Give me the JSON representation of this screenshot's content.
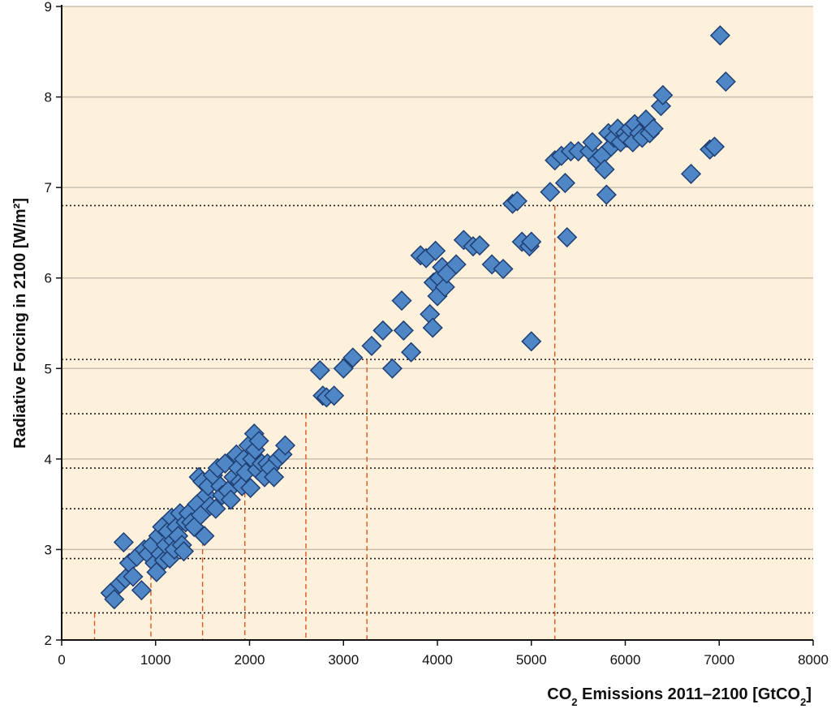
{
  "chart_data": {
    "type": "scatter",
    "title": "",
    "xlabel": {
      "prefix": "CO",
      "sub": "2",
      "main": " Emissions 2011–2100 [GtCO",
      "sub2": "2",
      "suffix": "]"
    },
    "ylabel": "Radiative Forcing in 2100 [W/m²]",
    "xlim": [
      0,
      8000
    ],
    "ylim": [
      2,
      9
    ],
    "xticks": [
      "0",
      "1000",
      "2000",
      "3000",
      "4000",
      "5000",
      "6000",
      "7000",
      "8000"
    ],
    "yticks": [
      "2",
      "3",
      "4",
      "5",
      "6",
      "7",
      "8",
      "9"
    ],
    "grid": true,
    "colors": {
      "background": "#fdf1dc",
      "grid": "#c8bfae",
      "marker_fill": "#4f86c6",
      "marker_stroke": "#1f3f73",
      "dotted_line": "#1a1a1a",
      "dashed_line": "#e0561e"
    },
    "reference_levels": [
      2.3,
      2.9,
      3.45,
      3.9,
      4.5,
      5.1,
      6.8
    ],
    "reference_lines": [
      {
        "x": 350,
        "y": 2.3
      },
      {
        "x": 950,
        "y": 2.9
      },
      {
        "x": 1500,
        "y": 3.45
      },
      {
        "x": 1950,
        "y": 3.9
      },
      {
        "x": 2600,
        "y": 4.5
      },
      {
        "x": 3250,
        "y": 5.1
      },
      {
        "x": 5250,
        "y": 6.8
      }
    ],
    "points": [
      [
        520,
        2.52
      ],
      [
        560,
        2.45
      ],
      [
        620,
        2.62
      ],
      [
        680,
        2.68
      ],
      [
        660,
        3.08
      ],
      [
        720,
        2.85
      ],
      [
        760,
        2.7
      ],
      [
        800,
        2.92
      ],
      [
        850,
        2.55
      ],
      [
        880,
        3.0
      ],
      [
        920,
        2.95
      ],
      [
        960,
        3.05
      ],
      [
        990,
        2.85
      ],
      [
        1010,
        2.75
      ],
      [
        1030,
        3.15
      ],
      [
        1050,
        2.95
      ],
      [
        1070,
        3.25
      ],
      [
        1090,
        2.88
      ],
      [
        1110,
        3.05
      ],
      [
        1130,
        3.2
      ],
      [
        1150,
        2.9
      ],
      [
        1170,
        3.35
      ],
      [
        1190,
        3.1
      ],
      [
        1200,
        3.0
      ],
      [
        1220,
        3.25
      ],
      [
        1240,
        3.15
      ],
      [
        1260,
        3.4
      ],
      [
        1280,
        3.05
      ],
      [
        1300,
        2.98
      ],
      [
        1320,
        3.3
      ],
      [
        1350,
        3.4
      ],
      [
        1380,
        3.3
      ],
      [
        1410,
        3.25
      ],
      [
        1440,
        3.5
      ],
      [
        1460,
        3.8
      ],
      [
        1480,
        3.38
      ],
      [
        1500,
        3.75
      ],
      [
        1520,
        3.15
      ],
      [
        1540,
        3.6
      ],
      [
        1560,
        3.7
      ],
      [
        1580,
        3.48
      ],
      [
        1610,
        3.82
      ],
      [
        1640,
        3.45
      ],
      [
        1660,
        3.9
      ],
      [
        1690,
        3.7
      ],
      [
        1710,
        3.6
      ],
      [
        1740,
        3.95
      ],
      [
        1770,
        3.65
      ],
      [
        1800,
        3.55
      ],
      [
        1830,
        3.8
      ],
      [
        1860,
        4.05
      ],
      [
        1880,
        3.9
      ],
      [
        1900,
        3.75
      ],
      [
        1920,
        3.7
      ],
      [
        1940,
        4.0
      ],
      [
        1960,
        3.85
      ],
      [
        1990,
        4.15
      ],
      [
        2010,
        3.68
      ],
      [
        2030,
        4.0
      ],
      [
        2050,
        4.28
      ],
      [
        2060,
        4.1
      ],
      [
        2080,
        3.88
      ],
      [
        2100,
        4.2
      ],
      [
        2130,
        3.95
      ],
      [
        2160,
        3.8
      ],
      [
        2190,
        3.95
      ],
      [
        2220,
        3.9
      ],
      [
        2260,
        3.8
      ],
      [
        2300,
        4.0
      ],
      [
        2350,
        4.05
      ],
      [
        2380,
        4.15
      ],
      [
        2750,
        4.98
      ],
      [
        2780,
        4.7
      ],
      [
        2820,
        4.68
      ],
      [
        2900,
        4.7
      ],
      [
        3000,
        5.0
      ],
      [
        3100,
        5.12
      ],
      [
        3300,
        5.25
      ],
      [
        3420,
        5.42
      ],
      [
        3520,
        5.0
      ],
      [
        3620,
        5.75
      ],
      [
        3640,
        5.42
      ],
      [
        3720,
        5.18
      ],
      [
        3820,
        6.25
      ],
      [
        3880,
        6.22
      ],
      [
        3920,
        5.6
      ],
      [
        3950,
        5.45
      ],
      [
        3960,
        5.95
      ],
      [
        3980,
        6.3
      ],
      [
        4000,
        5.8
      ],
      [
        4020,
        6.0
      ],
      [
        4050,
        6.12
      ],
      [
        4080,
        5.9
      ],
      [
        4100,
        6.05
      ],
      [
        4200,
        6.15
      ],
      [
        4280,
        6.42
      ],
      [
        4380,
        6.35
      ],
      [
        4450,
        6.36
      ],
      [
        4580,
        6.15
      ],
      [
        4700,
        6.1
      ],
      [
        4800,
        6.82
      ],
      [
        4850,
        6.85
      ],
      [
        4900,
        6.4
      ],
      [
        4980,
        6.35
      ],
      [
        5000,
        6.4
      ],
      [
        5000,
        5.3
      ],
      [
        5200,
        6.95
      ],
      [
        5250,
        7.3
      ],
      [
        5320,
        7.35
      ],
      [
        5360,
        7.05
      ],
      [
        5380,
        6.45
      ],
      [
        5420,
        7.4
      ],
      [
        5500,
        7.4
      ],
      [
        5620,
        7.4
      ],
      [
        5650,
        7.5
      ],
      [
        5700,
        7.3
      ],
      [
        5750,
        7.35
      ],
      [
        5780,
        7.2
      ],
      [
        5800,
        6.92
      ],
      [
        5820,
        7.6
      ],
      [
        5850,
        7.45
      ],
      [
        5880,
        7.55
      ],
      [
        5920,
        7.65
      ],
      [
        5950,
        7.5
      ],
      [
        6000,
        7.6
      ],
      [
        6020,
        7.55
      ],
      [
        6050,
        7.65
      ],
      [
        6080,
        7.5
      ],
      [
        6100,
        7.7
      ],
      [
        6150,
        7.6
      ],
      [
        6180,
        7.55
      ],
      [
        6220,
        7.75
      ],
      [
        6260,
        7.6
      ],
      [
        6300,
        7.65
      ],
      [
        6380,
        7.9
      ],
      [
        6400,
        8.02
      ],
      [
        6700,
        7.15
      ],
      [
        6900,
        7.42
      ],
      [
        6950,
        7.45
      ],
      [
        7010,
        8.68
      ],
      [
        7070,
        8.17
      ]
    ]
  }
}
